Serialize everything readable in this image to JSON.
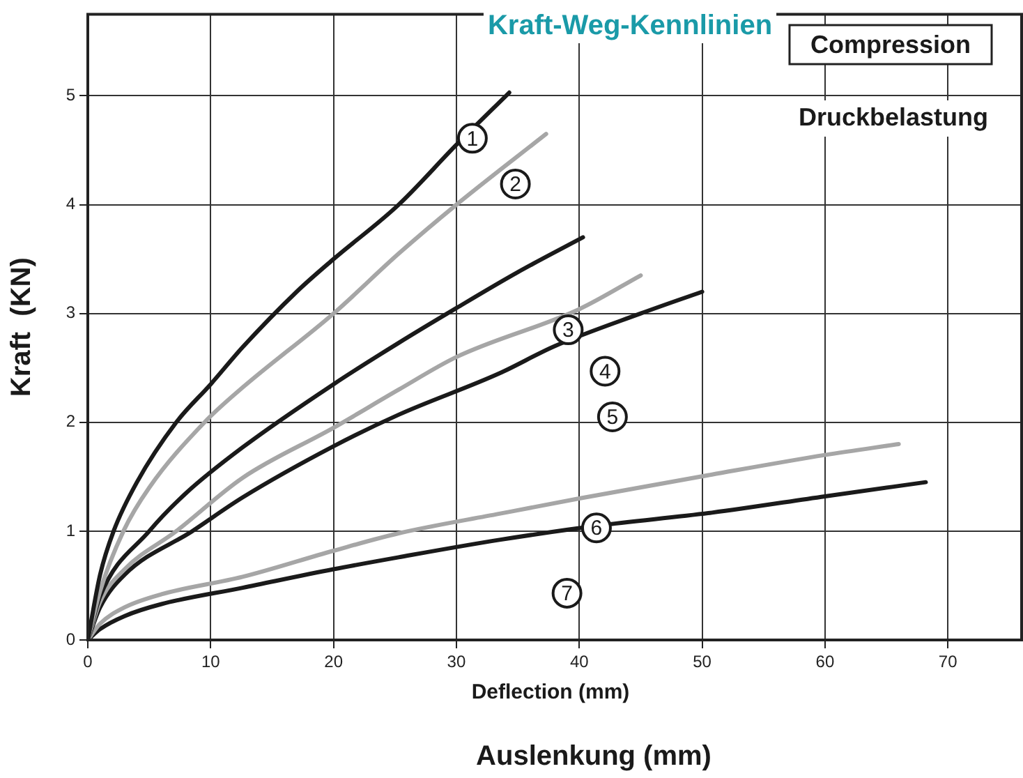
{
  "chart_data": {
    "type": "line",
    "title": "Kraft-Weg-Kennlinien",
    "xlabel": "Deflection (mm)",
    "ylabel": "Kraft  (KN)",
    "xlim": [
      0,
      76
    ],
    "ylim": [
      0,
      5.75
    ],
    "xticks": [
      0,
      10,
      20,
      30,
      40,
      50,
      60,
      70
    ],
    "yticks": [
      0,
      1,
      2,
      3,
      4,
      5
    ],
    "grid": true,
    "legend": false,
    "marker": "none",
    "line_style": "solid",
    "series": [
      {
        "color": "#1a1a1a",
        "x": [
          0,
          1,
          2.1,
          4,
          7.2,
          10,
          12.6,
          17,
          20,
          25.3,
          30,
          34.3
        ],
        "values": [
          0,
          0.6,
          1.0,
          1.45,
          2.0,
          2.35,
          2.69,
          3.2,
          3.5,
          4.0,
          4.55,
          5.03
        ]
      },
      {
        "color": "#a6a6a6",
        "x": [
          0,
          1,
          2.9,
          5,
          9.5,
          12.6,
          20,
          25.3,
          30,
          37.3
        ],
        "values": [
          0,
          0.45,
          1.0,
          1.4,
          2.0,
          2.32,
          3.0,
          3.55,
          4.0,
          4.65
        ]
      },
      {
        "color": "#1a1a1a",
        "x": [
          0,
          1,
          5,
          8,
          12.6,
          20,
          25.3,
          30,
          35,
          40.3
        ],
        "values": [
          0,
          0.4,
          1.0,
          1.35,
          1.77,
          2.35,
          2.73,
          3.05,
          3.38,
          3.7
        ]
      },
      {
        "color": "#a6a6a6",
        "x": [
          0,
          1,
          3,
          7.2,
          12.6,
          20,
          25.3,
          30,
          40,
          45
        ],
        "values": [
          0,
          0.35,
          0.65,
          1.0,
          1.49,
          1.95,
          2.3,
          2.6,
          3.04,
          3.35
        ]
      },
      {
        "color": "#1a1a1a",
        "x": [
          0,
          1,
          3,
          8.5,
          12.6,
          20,
          25.3,
          33.5,
          38,
          45,
          50
        ],
        "values": [
          0,
          0.3,
          0.6,
          1.0,
          1.31,
          1.78,
          2.07,
          2.45,
          2.7,
          3.0,
          3.2
        ]
      },
      {
        "color": "#a6a6a6",
        "x": [
          0,
          1,
          3,
          6,
          12.6,
          20,
          25.3,
          33.5,
          40,
          50.8,
          60,
          66
        ],
        "values": [
          0,
          0.15,
          0.3,
          0.42,
          0.58,
          0.82,
          0.98,
          1.16,
          1.3,
          1.52,
          1.7,
          1.8
        ]
      },
      {
        "color": "#1a1a1a",
        "x": [
          0,
          1,
          3,
          6,
          12.6,
          20,
          25.3,
          33.5,
          41.5,
          50.8,
          60,
          68.2
        ],
        "values": [
          0,
          0.1,
          0.22,
          0.33,
          0.48,
          0.65,
          0.76,
          0.92,
          1.05,
          1.17,
          1.32,
          1.45
        ]
      }
    ],
    "annotations": [
      {
        "text": "1",
        "x": 31.3,
        "y": 4.61
      },
      {
        "text": "2",
        "x": 34.8,
        "y": 4.19
      },
      {
        "text": "3",
        "x": 39.1,
        "y": 2.85
      },
      {
        "text": "4",
        "x": 42.1,
        "y": 2.47
      },
      {
        "text": "5",
        "x": 42.7,
        "y": 2.05
      },
      {
        "text": "6",
        "x": 41.4,
        "y": 1.03
      },
      {
        "text": "7",
        "x": 39.0,
        "y": 0.43
      },
      "Compression",
      "Druckbelastung",
      "Auslenkung (mm)"
    ]
  }
}
